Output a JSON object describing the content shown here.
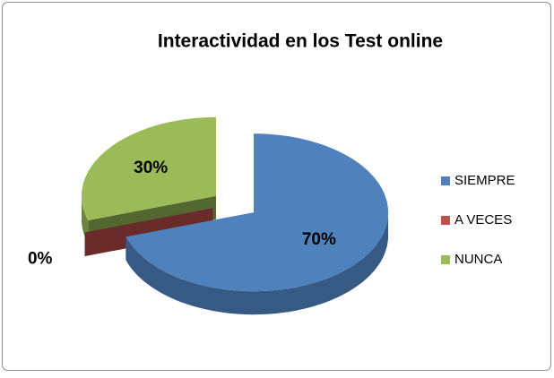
{
  "chart_data": {
    "type": "pie",
    "title": "Interactividad en los Test online",
    "categories": [
      "SIEMPRE",
      "A VECES",
      "NUNCA"
    ],
    "values": [
      70,
      0,
      30
    ],
    "value_labels": [
      "70%",
      "0%",
      "30%"
    ],
    "colors": [
      "#4f81bd",
      "#c0504d",
      "#9bbb59"
    ],
    "legend": "right"
  }
}
